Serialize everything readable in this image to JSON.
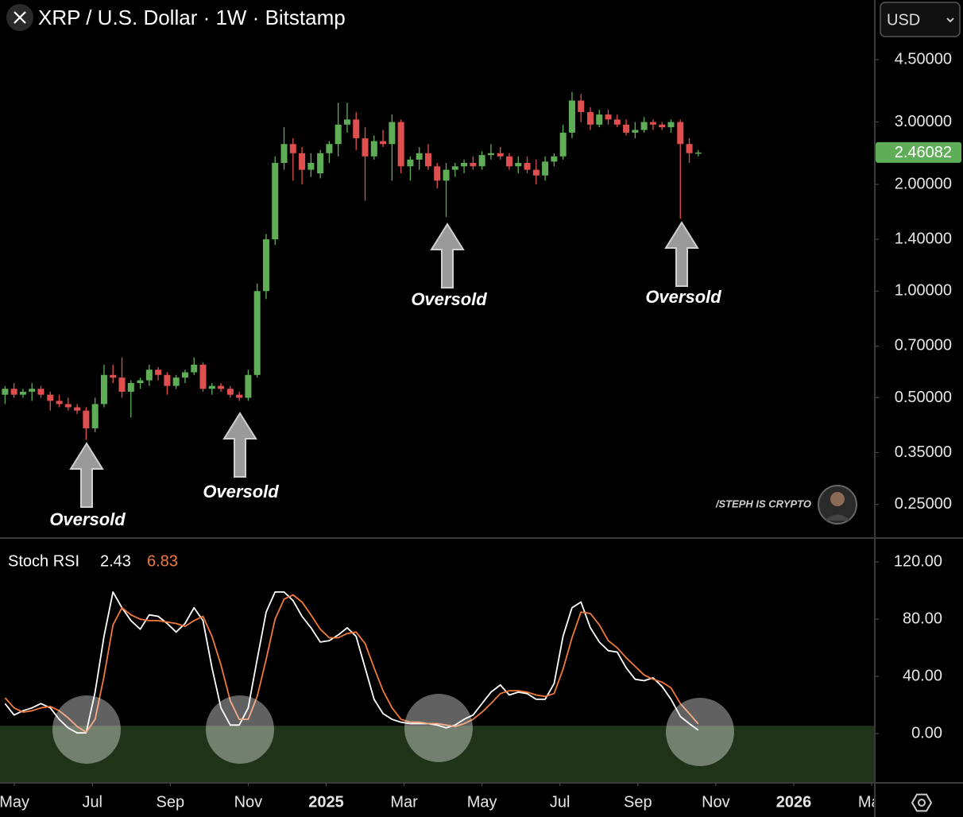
{
  "header": {
    "currency": "USD",
    "watermark": "/STEPH IS CRYPTO"
  },
  "chart_data": [
    {
      "type": "candlestick",
      "title": "XRP / U.S. Dollar · 1W · Bitstamp",
      "log_scale": true,
      "grid": false,
      "up_color": "#5fae57",
      "down_color": "#e04f4f",
      "xlim": [
        3.63,
        26.06
      ],
      "ylim": [
        0.202,
        6.63
      ],
      "xticks": [
        {
          "value": 4,
          "label": "May"
        },
        {
          "value": 6,
          "label": "Jul"
        },
        {
          "value": 8,
          "label": "Sep"
        },
        {
          "value": 10,
          "label": "Nov"
        },
        {
          "value": 12,
          "label": "2025"
        },
        {
          "value": 14,
          "label": "Mar"
        },
        {
          "value": 16,
          "label": "May"
        },
        {
          "value": 18,
          "label": "Jul"
        },
        {
          "value": 20,
          "label": "Sep"
        },
        {
          "value": 22,
          "label": "Nov"
        },
        {
          "value": 24,
          "label": "2026"
        },
        {
          "value": 26,
          "label": "Mar"
        }
      ],
      "yticks": [
        {
          "value": 4.5,
          "label": "4.50000"
        },
        {
          "value": 3,
          "label": "3.00000"
        },
        {
          "value": 2,
          "label": "2.00000"
        },
        {
          "value": 1.4,
          "label": "1.40000"
        },
        {
          "value": 1,
          "label": "1.00000"
        },
        {
          "value": 0.7,
          "label": "0.70000"
        },
        {
          "value": 0.5,
          "label": "0.50000"
        },
        {
          "value": 0.35,
          "label": "0.35000"
        },
        {
          "value": 0.25,
          "label": "0.25000"
        }
      ],
      "x": [
        3.76,
        3.99,
        4.22,
        4.45,
        4.68,
        4.92,
        5.15,
        5.38,
        5.61,
        5.84,
        6.07,
        6.3,
        6.53,
        6.76,
        6.99,
        7.23,
        7.46,
        7.69,
        7.92,
        8.15,
        8.38,
        8.61,
        8.84,
        9.07,
        9.3,
        9.54,
        9.77,
        10.0,
        10.23,
        10.46,
        10.69,
        10.92,
        11.15,
        11.38,
        11.61,
        11.85,
        12.08,
        12.31,
        12.54,
        12.77,
        13.0,
        13.23,
        13.46,
        13.69,
        13.92,
        14.16,
        14.39,
        14.62,
        14.85,
        15.08,
        15.31,
        15.54,
        15.77,
        16.0,
        16.23,
        16.47,
        16.7,
        16.93,
        17.16,
        17.39,
        17.62,
        17.85,
        18.08,
        18.31,
        18.54,
        18.78,
        19.01,
        19.24,
        19.47,
        19.7,
        19.93,
        20.16,
        20.39,
        20.62,
        20.85,
        21.09,
        21.32,
        21.55
      ],
      "open": [
        0.51,
        0.53,
        0.51,
        0.52,
        0.53,
        0.51,
        0.49,
        0.48,
        0.47,
        0.46,
        0.41,
        0.48,
        0.58,
        0.57,
        0.52,
        0.55,
        0.56,
        0.6,
        0.58,
        0.54,
        0.57,
        0.59,
        0.62,
        0.53,
        0.54,
        0.53,
        0.51,
        0.5,
        0.58,
        1.0,
        1.4,
        2.3,
        2.6,
        2.45,
        2.2,
        2.15,
        2.45,
        2.6,
        2.95,
        3.05,
        2.7,
        2.4,
        2.65,
        2.6,
        3.0,
        2.25,
        2.35,
        2.45,
        2.25,
        2.05,
        2.2,
        2.25,
        2.3,
        2.25,
        2.42,
        2.45,
        2.4,
        2.25,
        2.3,
        2.2,
        2.12,
        2.32,
        2.4,
        2.8,
        3.45,
        3.2,
        2.95,
        3.15,
        3.05,
        2.95,
        2.8,
        2.85,
        3.0,
        2.95,
        2.9,
        3.0,
        2.6,
        2.45
      ],
      "high": [
        0.54,
        0.55,
        0.53,
        0.55,
        0.54,
        0.52,
        0.51,
        0.5,
        0.48,
        0.47,
        0.5,
        0.62,
        0.62,
        0.65,
        0.56,
        0.57,
        0.62,
        0.61,
        0.59,
        0.58,
        0.6,
        0.65,
        0.63,
        0.55,
        0.55,
        0.54,
        0.52,
        0.6,
        1.05,
        1.45,
        2.4,
        2.9,
        2.7,
        2.55,
        2.45,
        2.5,
        2.65,
        3.4,
        3.4,
        3.2,
        2.9,
        2.75,
        2.85,
        3.15,
        3.05,
        2.4,
        2.55,
        2.6,
        2.3,
        2.3,
        2.3,
        2.35,
        2.4,
        2.48,
        2.6,
        2.55,
        2.45,
        2.4,
        2.4,
        2.35,
        2.4,
        2.45,
        2.95,
        3.65,
        3.6,
        3.3,
        3.25,
        3.25,
        3.15,
        3.05,
        3.0,
        3.1,
        3.05,
        3.0,
        3.05,
        3.05,
        2.7,
        2.5
      ],
      "low": [
        0.48,
        0.5,
        0.5,
        0.49,
        0.5,
        0.46,
        0.47,
        0.46,
        0.45,
        0.38,
        0.4,
        0.47,
        0.55,
        0.5,
        0.44,
        0.53,
        0.54,
        0.56,
        0.51,
        0.53,
        0.55,
        0.58,
        0.52,
        0.51,
        0.52,
        0.5,
        0.49,
        0.49,
        0.57,
        0.95,
        1.35,
        2.2,
        2.05,
        2.0,
        2.1,
        2.08,
        2.3,
        2.4,
        2.8,
        2.5,
        1.8,
        2.35,
        2.55,
        2.05,
        2.15,
        2.05,
        2.2,
        2.2,
        1.95,
        1.62,
        2.1,
        2.15,
        2.2,
        2.2,
        2.35,
        2.35,
        2.2,
        2.15,
        2.15,
        2.0,
        2.05,
        2.25,
        2.35,
        2.7,
        3.0,
        2.85,
        2.9,
        2.95,
        2.9,
        2.75,
        2.7,
        2.8,
        2.85,
        2.85,
        2.8,
        1.6,
        2.3,
        2.4
      ],
      "close": [
        0.53,
        0.51,
        0.52,
        0.53,
        0.51,
        0.49,
        0.48,
        0.47,
        0.46,
        0.41,
        0.48,
        0.58,
        0.57,
        0.52,
        0.55,
        0.56,
        0.6,
        0.58,
        0.54,
        0.57,
        0.59,
        0.62,
        0.53,
        0.54,
        0.53,
        0.51,
        0.5,
        0.58,
        1.0,
        1.4,
        2.3,
        2.6,
        2.45,
        2.2,
        2.3,
        2.45,
        2.6,
        2.95,
        3.05,
        2.7,
        2.4,
        2.65,
        2.6,
        3.0,
        2.25,
        2.35,
        2.45,
        2.25,
        2.05,
        2.2,
        2.25,
        2.3,
        2.25,
        2.42,
        2.45,
        2.4,
        2.25,
        2.3,
        2.2,
        2.12,
        2.32,
        2.4,
        2.8,
        3.45,
        3.2,
        2.95,
        3.15,
        3.05,
        2.95,
        2.8,
        2.85,
        3.0,
        2.95,
        2.9,
        3.0,
        2.6,
        2.45,
        2.46082
      ],
      "annotations": [
        "Oversold",
        "Oversold",
        "Oversold",
        "Oversold"
      ]
    },
    {
      "type": "line",
      "title": "Stoch RSI",
      "grid": false,
      "ylim": [
        -34.4,
        136.7
      ],
      "yticks": [
        {
          "value": 120,
          "label": "120.00"
        },
        {
          "value": 80,
          "label": "80.00"
        },
        {
          "value": 40,
          "label": "40.00"
        },
        {
          "value": 0,
          "label": "0.00"
        }
      ],
      "zone": {
        "from": -34.4,
        "to": 5.5,
        "color": "#1e3318"
      },
      "series": [
        {
          "color": "#ffffff",
          "values": [
            21,
            13,
            16,
            18,
            21,
            18,
            10,
            4,
            0.5,
            0.5,
            29,
            68,
            99,
            88,
            79,
            73,
            83,
            82,
            77,
            71,
            77,
            88,
            79,
            46,
            18,
            6,
            6,
            18,
            52,
            85,
            99,
            99,
            93,
            82,
            74,
            64,
            65,
            69,
            74,
            68,
            46,
            24,
            14,
            10,
            8,
            7,
            7,
            7,
            6,
            4,
            6,
            10,
            13,
            21,
            29,
            34,
            27,
            29,
            28,
            24,
            24,
            35,
            68,
            88,
            92,
            74,
            64,
            58,
            57,
            46,
            38,
            37,
            39,
            33,
            24,
            12,
            7,
            2.43
          ]
        },
        {
          "color": "#f07a3c",
          "values": [
            25,
            18,
            15,
            16,
            18,
            19,
            16,
            11,
            5,
            1,
            10,
            40,
            76,
            88,
            83,
            80,
            79,
            79,
            78,
            77,
            75,
            79,
            82,
            68,
            48,
            23,
            10,
            10,
            26,
            52,
            80,
            94,
            97,
            92,
            83,
            73,
            67,
            67,
            70,
            71,
            63,
            46,
            30,
            18,
            10,
            8,
            8,
            7,
            7,
            6,
            5,
            7,
            10,
            15,
            21,
            28,
            30,
            30,
            29,
            27,
            26,
            28,
            45,
            67,
            85,
            84,
            76,
            65,
            60,
            53,
            47,
            41,
            38,
            36,
            32,
            21,
            14,
            6.83
          ]
        }
      ]
    }
  ]
}
